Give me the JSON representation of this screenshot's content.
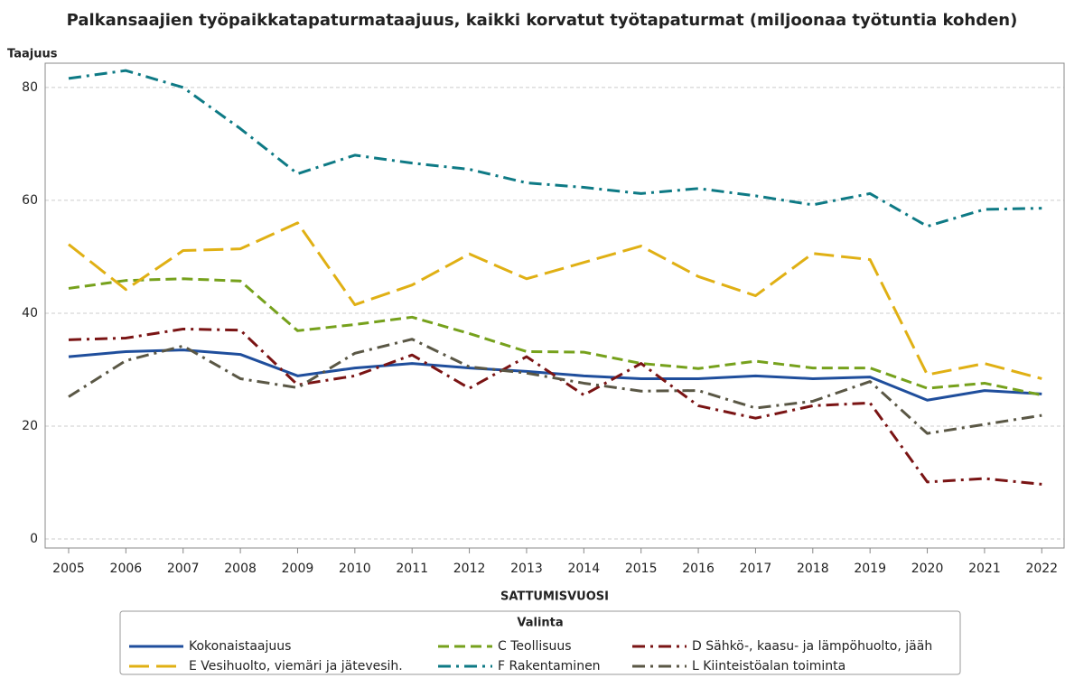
{
  "chart_data": {
    "type": "line",
    "title": "Palkansaajien työpaikkatapaturmataajuus, kaikki korvatut työtapaturmat (miljoonaa työtuntia kohden)",
    "y_label": "Taajuus",
    "x_label": "SATTUMISVUOSI",
    "legend_title": "Valinta",
    "legend": "bottom",
    "grid": true,
    "x": [
      2005,
      2006,
      2007,
      2008,
      2009,
      2010,
      2011,
      2012,
      2013,
      2014,
      2015,
      2016,
      2017,
      2018,
      2019,
      2020,
      2021,
      2022
    ],
    "xlim": [
      2004.59,
      2022.39
    ],
    "xticks": [
      2005,
      2006,
      2007,
      2008,
      2009,
      2010,
      2011,
      2012,
      2013,
      2014,
      2015,
      2016,
      2017,
      2018,
      2019,
      2020,
      2021,
      2022
    ],
    "ylim": [
      -1.6,
      84.3
    ],
    "yticks": [
      0,
      20,
      40,
      60,
      80
    ],
    "series": [
      {
        "name": "Kokonaistaajuus",
        "color": "#1f4e9c",
        "linestyle": "solid",
        "values": [
          32.3,
          33.2,
          33.5,
          32.7,
          28.9,
          30.3,
          31.1,
          30.3,
          29.7,
          28.9,
          28.4,
          28.4,
          28.9,
          28.4,
          28.7,
          24.6,
          26.3,
          25.7
        ]
      },
      {
        "name": "C Teollisuus",
        "color": "#76a11c",
        "linestyle": "dashed",
        "values": [
          44.4,
          45.8,
          46.1,
          45.7,
          36.9,
          38.0,
          39.3,
          36.4,
          33.2,
          33.1,
          31.1,
          30.2,
          31.5,
          30.3,
          30.3,
          26.7,
          27.6,
          25.5
        ]
      },
      {
        "name": "D Sähkö-, kaasu- ja lämpöhuolto, jääh",
        "color": "#7a1414",
        "linestyle": "dashdot",
        "values": [
          35.3,
          35.6,
          37.2,
          37.0,
          27.3,
          28.9,
          32.6,
          26.7,
          32.3,
          25.5,
          31.1,
          23.6,
          21.4,
          23.6,
          24.1,
          10.1,
          10.7,
          9.7
        ]
      },
      {
        "name": "E Vesihuolto, viemäri ja jätevesih.",
        "color": "#e0b014",
        "linestyle": "longdash",
        "values": [
          52.2,
          44.2,
          51.1,
          51.4,
          56.0,
          41.5,
          45.0,
          50.5,
          46.1,
          49.0,
          51.9,
          46.5,
          43.1,
          50.6,
          49.5,
          29.1,
          31.1,
          28.4
        ]
      },
      {
        "name": "F Rakentaminen",
        "color": "#0e7a85",
        "linestyle": "dashdot",
        "values": [
          81.6,
          83.0,
          80.0,
          72.7,
          64.7,
          68.0,
          66.6,
          65.5,
          63.1,
          62.3,
          61.2,
          62.1,
          60.8,
          59.2,
          61.2,
          55.4,
          58.4,
          58.6
        ]
      },
      {
        "name": "L Kiinteistöalan toiminta",
        "color": "#5a5745",
        "linestyle": "dashdot",
        "values": [
          25.2,
          31.6,
          34.2,
          28.4,
          26.8,
          32.9,
          35.4,
          30.5,
          29.4,
          27.6,
          26.2,
          26.3,
          23.2,
          24.4,
          27.9,
          18.7,
          20.3,
          21.9
        ]
      }
    ]
  }
}
